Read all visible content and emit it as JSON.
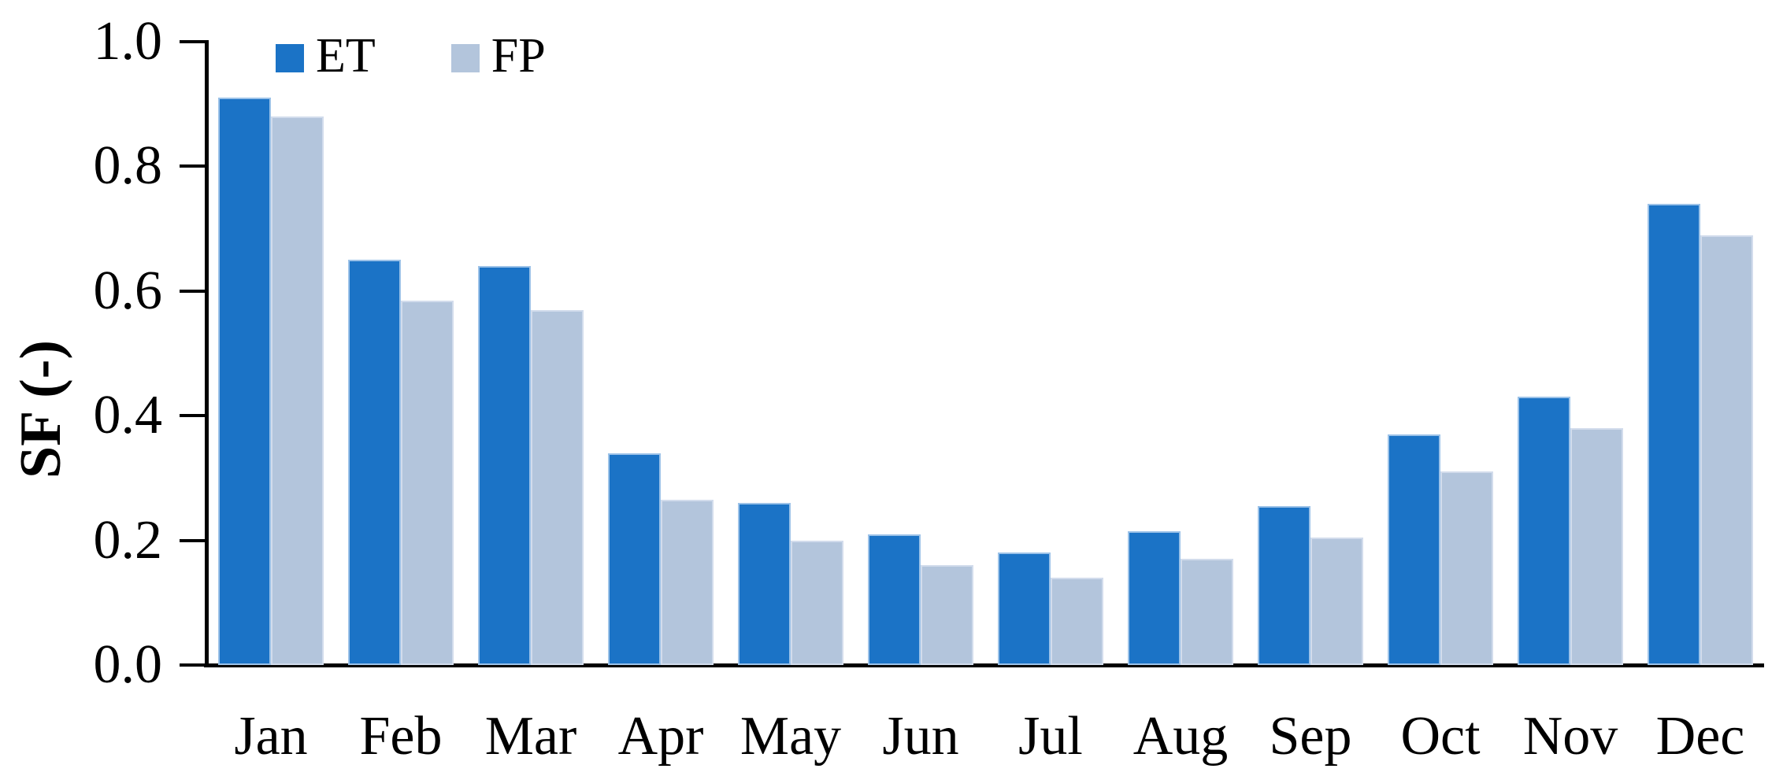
{
  "figure": {
    "background": "#ffffff",
    "axis_color": "#000000",
    "text_color": "#000000"
  },
  "chart_data": {
    "type": "bar",
    "title": "",
    "xlabel": "",
    "ylabel": "SF (-)",
    "ylim": [
      0.0,
      1.0
    ],
    "ytick_labels": [
      "0.0",
      "0.2",
      "0.4",
      "0.6",
      "0.8",
      "1.0"
    ],
    "grid": false,
    "legend_position": "top-left",
    "categories": [
      "Jan",
      "Feb",
      "Mar",
      "Apr",
      "May",
      "Jun",
      "Jul",
      "Aug",
      "Sep",
      "Oct",
      "Nov",
      "Dec"
    ],
    "series": [
      {
        "name": "ET",
        "color": "#1B73C6",
        "border_color": "#9CC2E8",
        "values": [
          0.91,
          0.65,
          0.64,
          0.34,
          0.26,
          0.21,
          0.18,
          0.215,
          0.255,
          0.37,
          0.43,
          0.74
        ]
      },
      {
        "name": "FP",
        "color": "#B3C5DC",
        "border_color": "#D2DCEC",
        "values": [
          0.88,
          0.585,
          0.57,
          0.265,
          0.2,
          0.16,
          0.14,
          0.17,
          0.205,
          0.31,
          0.38,
          0.69
        ]
      }
    ]
  }
}
